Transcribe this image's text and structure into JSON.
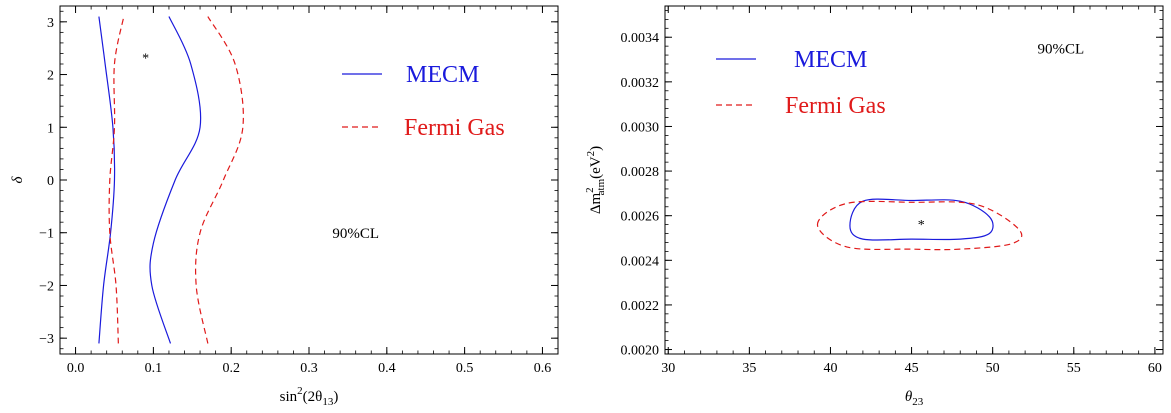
{
  "chart_data": [
    {
      "type": "line",
      "panel": "left",
      "xlim": [
        -0.02,
        0.62
      ],
      "ylim": [
        -3.3,
        3.3
      ],
      "xticks": [
        0.0,
        0.1,
        0.2,
        0.3,
        0.4,
        0.5,
        0.6
      ],
      "yticks": [
        -3,
        -2,
        -1,
        0,
        1,
        2,
        3
      ],
      "xtick_labels": [
        "0.0",
        "0.1",
        "0.2",
        "0.3",
        "0.4",
        "0.5",
        "0.6"
      ],
      "ytick_labels": [
        "−3",
        "−2",
        "−1",
        "0",
        "1",
        "2",
        "3"
      ],
      "xlabel_main": "sin",
      "xlabel_sup": "2",
      "xlabel_rest": "(2θ",
      "xlabel_sub": "13",
      "xlabel_end": ")",
      "ylabel": "δ",
      "annotation": "90%CL",
      "annotation_pos": {
        "x": 0.36,
        "y": -1.1
      },
      "best_fit": {
        "x": 0.09,
        "y": 2.4,
        "symbol": "*"
      },
      "legend": [
        {
          "label": "MECM",
          "color": "#1a1adc",
          "dash": "solid"
        },
        {
          "label": "Fermi Gas",
          "color": "#e01a1a",
          "dash": "dashed"
        }
      ],
      "series": [
        {
          "color": "#1a1adc",
          "dash": "solid",
          "x": [
            0.03,
            0.036,
            0.045,
            0.05,
            0.048,
            0.038,
            0.03
          ],
          "y": [
            -3.1,
            -2.0,
            -1.0,
            0.0,
            1.0,
            2.2,
            3.1
          ]
        },
        {
          "color": "#1a1adc",
          "dash": "solid",
          "x": [
            0.122,
            0.098,
            0.1,
            0.128,
            0.16,
            0.148,
            0.12
          ],
          "y": [
            -3.1,
            -2.0,
            -1.2,
            0.0,
            1.0,
            2.2,
            3.1
          ]
        },
        {
          "color": "#e01a1a",
          "dash": "dashed",
          "x": [
            0.055,
            0.052,
            0.044,
            0.044,
            0.05,
            0.05,
            0.062
          ],
          "y": [
            -3.1,
            -2.0,
            -1.0,
            0.0,
            1.0,
            2.2,
            3.1
          ]
        },
        {
          "color": "#e01a1a",
          "dash": "dashed",
          "x": [
            0.17,
            0.155,
            0.16,
            0.19,
            0.215,
            0.205,
            0.17
          ],
          "y": [
            -3.1,
            -2.0,
            -1.0,
            0.0,
            1.0,
            2.2,
            3.1
          ]
        }
      ]
    },
    {
      "type": "line",
      "panel": "right",
      "xlim": [
        29.8,
        60.5
      ],
      "ylim": [
        0.00198,
        0.00354
      ],
      "xticks": [
        30,
        35,
        40,
        45,
        50,
        55,
        60
      ],
      "yticks": [
        0.002,
        0.0022,
        0.0024,
        0.0026,
        0.0028,
        0.003,
        0.0032,
        0.0034
      ],
      "xtick_labels": [
        "30",
        "35",
        "40",
        "45",
        "50",
        "55",
        "60"
      ],
      "ytick_labels": [
        "0.0020",
        "0.0022",
        "0.0024",
        "0.0026",
        "0.0028",
        "0.0030",
        "0.0032",
        "0.0034"
      ],
      "xlabel_main": "θ",
      "xlabel_sub": "23",
      "ylabel_main": "Δm",
      "ylabel_sup": "2",
      "ylabel_sub": "atm",
      "ylabel_units": "(eV",
      "ylabel_units_sup": "2",
      "ylabel_units_end": ")",
      "annotation": "90%CL",
      "annotation_pos": {
        "x": 54.2,
        "y": 0.003328
      },
      "best_fit": {
        "x": 45.6,
        "y": 0.00258,
        "symbol": "*"
      },
      "legend": [
        {
          "label": "MECM",
          "color": "#1a1adc",
          "dash": "solid"
        },
        {
          "label": "Fermi Gas",
          "color": "#e01a1a",
          "dash": "dashed"
        }
      ],
      "series": [
        {
          "color": "#1a1adc",
          "dash": "solid",
          "closed": true,
          "x": [
            41.2,
            42.0,
            45.0,
            48.0,
            49.8,
            49.8,
            48.0,
            45.0,
            42.0,
            41.2
          ],
          "y": [
            0.002555,
            0.002665,
            0.002668,
            0.002665,
            0.002595,
            0.00252,
            0.002495,
            0.002495,
            0.002495,
            0.002555
          ]
        },
        {
          "color": "#e01a1a",
          "dash": "dashed",
          "closed": true,
          "x": [
            39.2,
            41.0,
            45.0,
            49.0,
            51.6,
            51.2,
            48.0,
            45.0,
            41.0,
            39.4
          ],
          "y": [
            0.00256,
            0.002655,
            0.00266,
            0.00265,
            0.00254,
            0.002475,
            0.00245,
            0.00245,
            0.00246,
            0.00252
          ]
        }
      ]
    }
  ]
}
